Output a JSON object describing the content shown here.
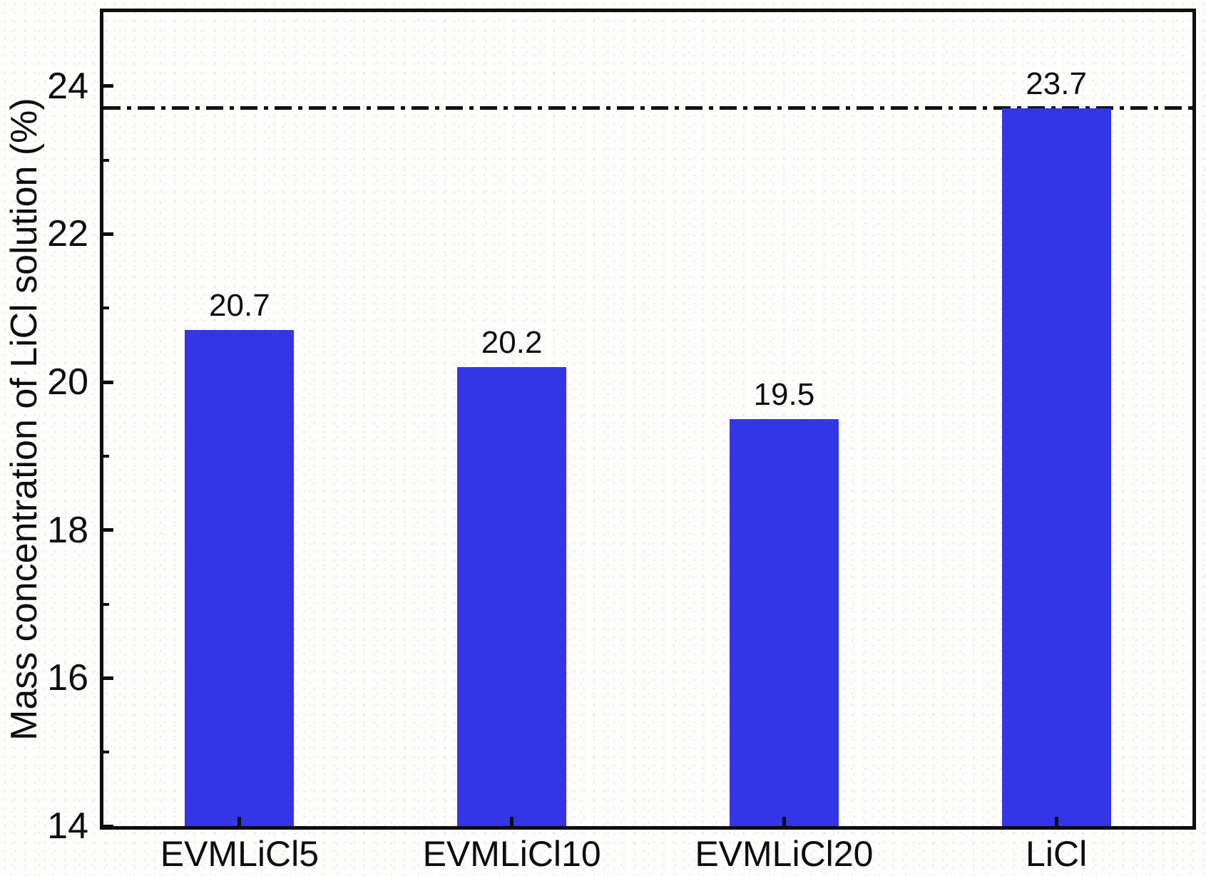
{
  "chart_data": {
    "type": "bar",
    "title": "",
    "categories": [
      "EVMLiCl5",
      "EVMLiCl10",
      "EVMLiCl20",
      "LiCl"
    ],
    "values": [
      20.7,
      20.2,
      19.5,
      23.7
    ],
    "bar_labels": [
      "20.7",
      "20.2",
      "19.5",
      "23.7"
    ],
    "xlabel": "",
    "ylabel": "Mass concentration of LiCl solution (%)",
    "ylim": [
      14,
      25
    ],
    "yticks_major": [
      14,
      16,
      18,
      20,
      22,
      24
    ],
    "yticks_minor": [
      15,
      17,
      19,
      21,
      23
    ],
    "reference_line": {
      "value": 23.7,
      "style": "dash-dot",
      "color": "#111111"
    },
    "bar_color": "#3335E6",
    "axis_color": "#0d0d0d",
    "grid": false,
    "legend": null
  }
}
